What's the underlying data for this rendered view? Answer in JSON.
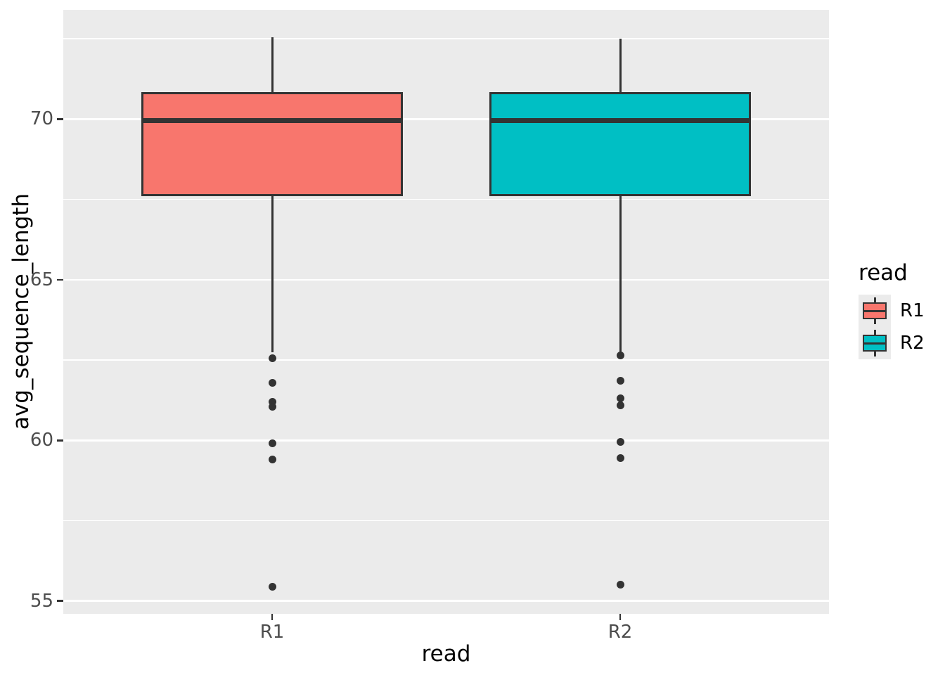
{
  "chart_data": {
    "type": "boxplot",
    "title": "",
    "xlabel": "read",
    "ylabel": "avg_sequence_length",
    "categories": [
      "R1",
      "R2"
    ],
    "x_positions": [
      1,
      2
    ],
    "xlim": [
      0.4,
      2.6
    ],
    "box_width_units": 0.75,
    "ylim": [
      54.6,
      73.4
    ],
    "y_major_ticks": [
      55,
      60,
      65,
      70
    ],
    "y_minor_gridlines": [
      57.5,
      62.5,
      67.5,
      72.5
    ],
    "grid": "on",
    "series": [
      {
        "name": "R1",
        "fill": "#F8766D",
        "whisker_low": 62.75,
        "q1": 67.6,
        "median": 69.95,
        "q3": 70.85,
        "whisker_high": 72.55,
        "outliers": [
          62.55,
          61.8,
          61.2,
          61.05,
          59.9,
          59.4,
          55.45
        ]
      },
      {
        "name": "R2",
        "fill": "#00BFC4",
        "whisker_low": 62.75,
        "q1": 67.6,
        "median": 69.95,
        "q3": 70.85,
        "whisker_high": 72.5,
        "outliers": [
          62.65,
          61.85,
          61.3,
          61.1,
          59.95,
          59.45,
          55.5
        ]
      }
    ],
    "legend": {
      "title": "read",
      "position": "right"
    }
  },
  "style": {
    "panel_background": "#EBEBEB",
    "gridline_color": "#FFFFFF",
    "box_stroke": "#333333",
    "outlier_color": "#333333",
    "tick_label_color": "#4D4D4D",
    "axis_title_color": "#000000",
    "figure_background": "#FFFFFF"
  }
}
